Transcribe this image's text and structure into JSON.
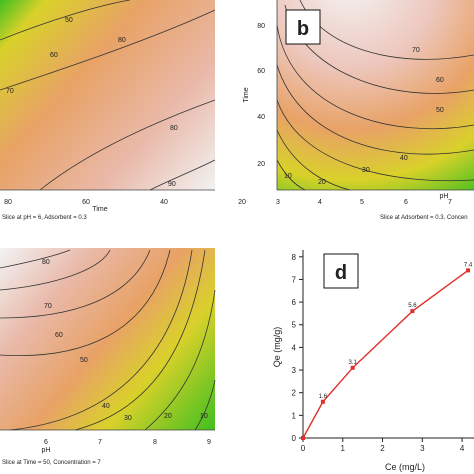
{
  "chart_data": [
    {
      "type": "heatmap",
      "panel": "",
      "xlabel": "Time",
      "ylabel": "",
      "x_ticks": [
        "80",
        "60",
        "40",
        "20"
      ],
      "y_ticks": [],
      "contour_labels": [
        "50",
        "60",
        "70",
        "80",
        "80",
        "90"
      ],
      "footer": "Slice at pH = 6, Adsorbent = 0.3",
      "colormap": [
        "#f2f2f2",
        "#e9b9a9",
        "#e8a266",
        "#d9d12a",
        "#3fbf1f"
      ]
    },
    {
      "type": "heatmap",
      "panel": "b",
      "xlabel": "pH",
      "ylabel": "Time",
      "x_ticks": [
        "3",
        "4",
        "5",
        "6",
        "7"
      ],
      "y_ticks": [
        "20",
        "40",
        "60",
        "80"
      ],
      "contour_labels": [
        "10",
        "20",
        "30",
        "40",
        "50",
        "60",
        "70"
      ],
      "footer": "Slice at Adsorbent = 0.3, Concen",
      "colormap": [
        "#f2f2f2",
        "#e9b9a9",
        "#e8a266",
        "#d9d12a",
        "#3fbf1f"
      ]
    },
    {
      "type": "heatmap",
      "panel": "",
      "xlabel": "pH",
      "ylabel": "",
      "x_ticks": [
        "6",
        "7",
        "8",
        "9"
      ],
      "y_ticks": [],
      "contour_labels": [
        "80",
        "70",
        "60",
        "50",
        "40",
        "30",
        "20",
        "10"
      ],
      "footer": "Slice at Time = 50, Concentration = 7",
      "colormap": [
        "#f2f2f2",
        "#e9b9a9",
        "#e8a266",
        "#d9d12a",
        "#3fbf1f"
      ]
    },
    {
      "type": "line",
      "panel": "d",
      "xlabel": "Ce (mg/L)",
      "ylabel": "Qe (mg/g)",
      "x_ticks": [
        "0",
        "1",
        "2",
        "3",
        "4"
      ],
      "y_ticks": [
        "0",
        "1",
        "2",
        "3",
        "4",
        "5",
        "6",
        "7",
        "8"
      ],
      "xlim": [
        0,
        4.3
      ],
      "ylim": [
        0,
        8.3
      ],
      "grid": false,
      "series": [
        {
          "name": "",
          "x": [
            0,
            0.5,
            1.25,
            2.75,
            4.15
          ],
          "y": [
            0,
            1.6,
            3.1,
            5.6,
            7.4
          ],
          "labels": [
            "",
            "1.6",
            "3.1",
            "5.6",
            "7.4"
          ],
          "color": "#e0302a"
        }
      ]
    }
  ]
}
